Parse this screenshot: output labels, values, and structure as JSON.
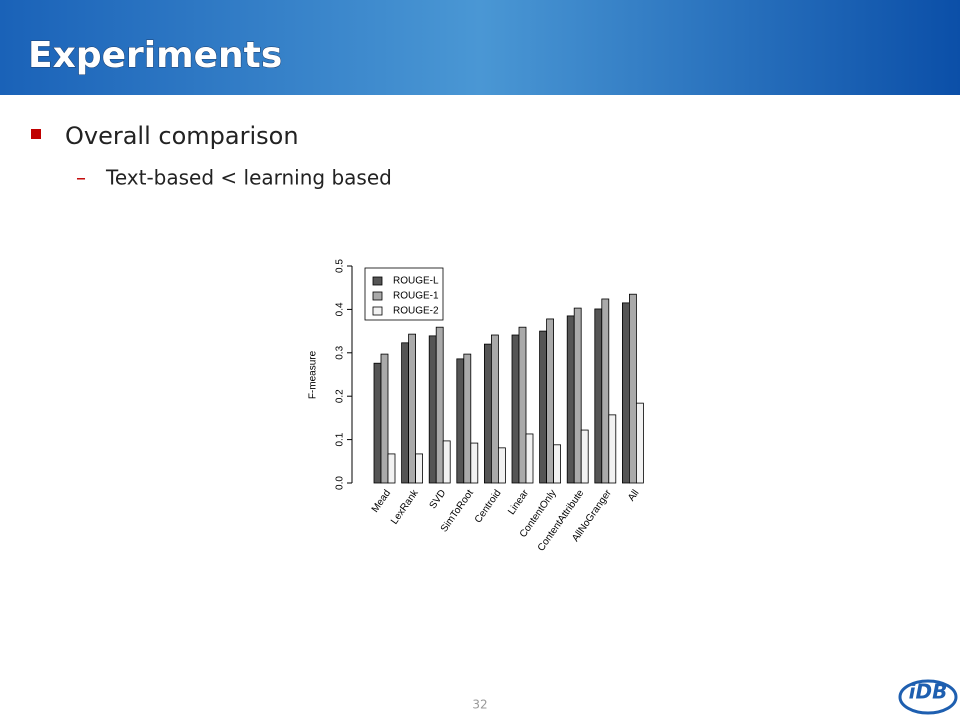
{
  "slide": {
    "title": "Experiments",
    "bullet": "Overall comparison",
    "sub_marker": "–",
    "sub_bullet": "Text-based < learning based",
    "page_number": "32",
    "logo": "iDB"
  },
  "chart_data": {
    "type": "bar",
    "y_label": "F-measure",
    "categories": [
      "Mead",
      "LexRank",
      "SVD",
      "SimToRoot",
      "Centroid",
      "Linear",
      "ContentOnly",
      "ContentAttribute",
      "AllNoGranger",
      "All"
    ],
    "series": [
      {
        "name": "ROUGE-L",
        "color": "#555555",
        "values": [
          0.276,
          0.323,
          0.339,
          0.286,
          0.32,
          0.341,
          0.35,
          0.385,
          0.401,
          0.415
        ]
      },
      {
        "name": "ROUGE-1",
        "color": "#aaaaaa",
        "values": [
          0.297,
          0.343,
          0.359,
          0.297,
          0.341,
          0.359,
          0.378,
          0.403,
          0.424,
          0.435
        ]
      },
      {
        "name": "ROUGE-2",
        "color": "#f2f2f2",
        "values": [
          0.067,
          0.067,
          0.097,
          0.092,
          0.081,
          0.113,
          0.088,
          0.122,
          0.157,
          0.184
        ]
      }
    ],
    "ylim": [
      0,
      0.5
    ],
    "yticks": [
      {
        "value": 0,
        "label": "0.0"
      },
      0.1,
      0.2,
      0.3,
      0.4,
      0.5
    ],
    "legend": "top-left"
  }
}
